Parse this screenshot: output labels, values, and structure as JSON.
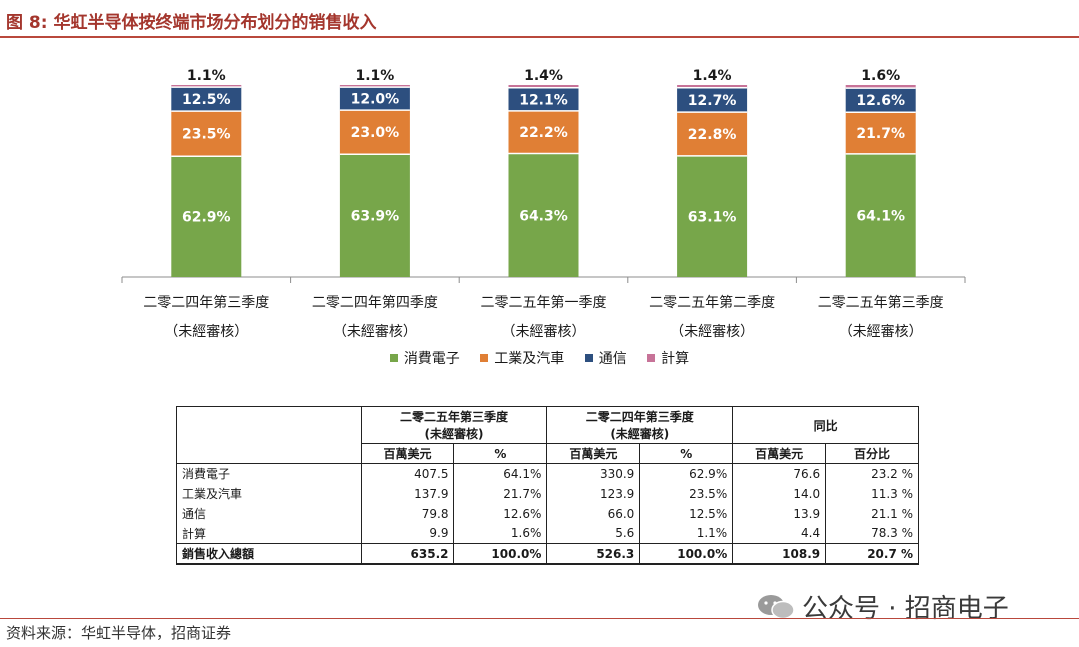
{
  "figure": {
    "title": "图 8: 华虹半导体按终端市场分布划分的销售收入",
    "source": "资料来源：华虹半导体，招商证券",
    "watermark": "公众号 · 招商电子"
  },
  "colors": {
    "consumer": "#77a64a",
    "industrial": "#e07f35",
    "comms": "#2d4f7f",
    "computing": "#c77398",
    "title": "#a4362d"
  },
  "chart_data": {
    "type": "bar",
    "stacked": true,
    "unit": "%",
    "categories": [
      {
        "line1": "二零二四年第三季度",
        "line2": "（未經審核）"
      },
      {
        "line1": "二零二四年第四季度",
        "line2": "（未經審核）"
      },
      {
        "line1": "二零二五年第一季度",
        "line2": "（未經審核）"
      },
      {
        "line1": "二零二五年第二季度",
        "line2": "（未經審核）"
      },
      {
        "line1": "二零二五年第三季度",
        "line2": "（未經審核）"
      }
    ],
    "series": [
      {
        "name": "消費電子",
        "key": "consumer",
        "values": [
          62.9,
          63.9,
          64.3,
          63.1,
          64.1
        ]
      },
      {
        "name": "工業及汽車",
        "key": "industrial",
        "values": [
          23.5,
          23.0,
          22.2,
          22.8,
          21.7
        ]
      },
      {
        "name": "通信",
        "key": "comms",
        "values": [
          12.5,
          12.0,
          12.1,
          12.7,
          12.6
        ]
      },
      {
        "name": "計算",
        "key": "computing",
        "values": [
          1.1,
          1.1,
          1.4,
          1.4,
          1.6
        ]
      }
    ],
    "ylim": [
      0,
      100
    ]
  },
  "table": {
    "col_groups": [
      {
        "line1": "二零二五年第三季度",
        "line2": "(未經審核)"
      },
      {
        "line1": "二零二四年第三季度",
        "line2": "(未經審核)"
      },
      {
        "line1": "同比"
      }
    ],
    "sub_headers": [
      "百萬美元",
      "%",
      "百萬美元",
      "%",
      "百萬美元",
      "百分比"
    ],
    "rows": [
      {
        "label": "消費電子",
        "cells": [
          "407.5",
          "64.1%",
          "330.9",
          "62.9%",
          "76.6",
          "23.2 %"
        ]
      },
      {
        "label": "工業及汽車",
        "cells": [
          "137.9",
          "21.7%",
          "123.9",
          "23.5%",
          "14.0",
          "11.3 %"
        ]
      },
      {
        "label": "通信",
        "cells": [
          "79.8",
          "12.6%",
          "66.0",
          "12.5%",
          "13.9",
          "21.1 %"
        ]
      },
      {
        "label": "計算",
        "cells": [
          "9.9",
          "1.6%",
          "5.6",
          "1.1%",
          "4.4",
          "78.3 %"
        ]
      }
    ],
    "total": {
      "label": "銷售收入總額",
      "cells": [
        "635.2",
        "100.0%",
        "526.3",
        "100.0%",
        "108.9",
        "20.7 %"
      ]
    }
  }
}
